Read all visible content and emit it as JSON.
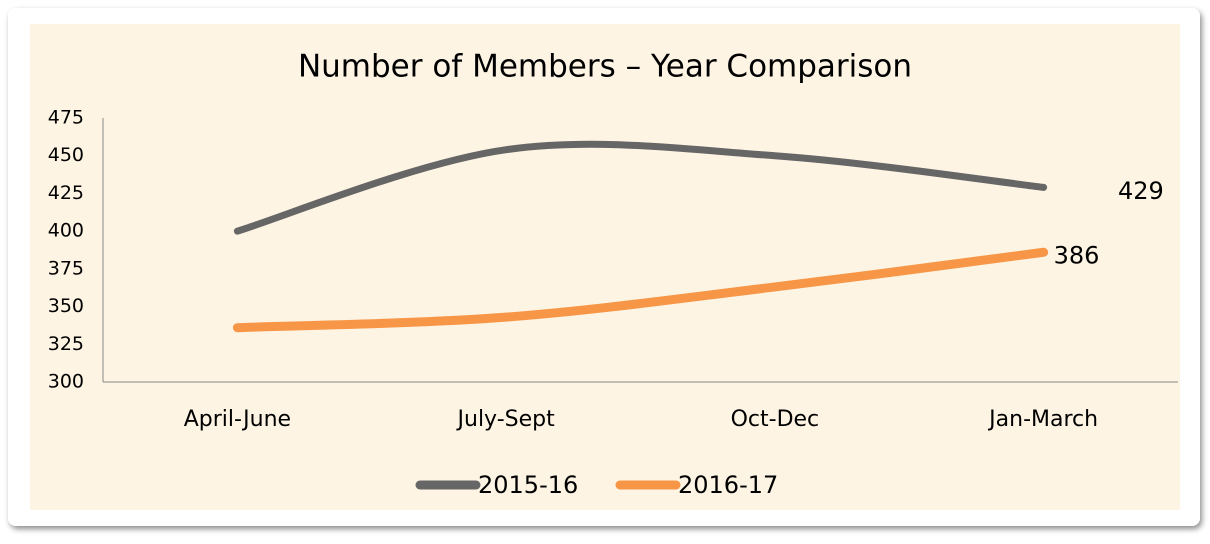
{
  "chart_data": {
    "type": "line",
    "title": "Number of Members – Year Comparison",
    "categories": [
      "April-June",
      "July-Sept",
      "Oct-Dec",
      "Jan-March"
    ],
    "series": [
      {
        "name": "2015-16",
        "color": "#666666",
        "values": [
          400,
          454,
          450,
          429
        ]
      },
      {
        "name": "2016-17",
        "color": "#f79646",
        "values": [
          336,
          343,
          363,
          386
        ]
      }
    ],
    "ylim": [
      300,
      475
    ],
    "yticks": [
      300,
      325,
      350,
      375,
      400,
      425,
      450,
      475
    ],
    "smooth": true,
    "legend": "bottom"
  }
}
